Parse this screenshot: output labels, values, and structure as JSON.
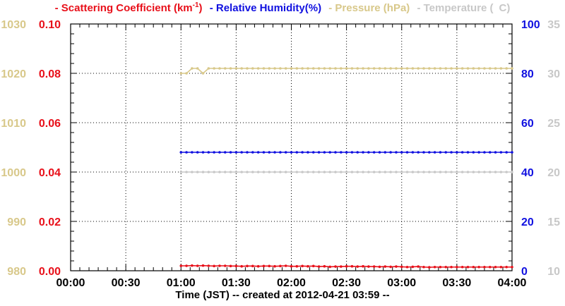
{
  "legend": [
    {
      "text": "- Scattering Coefficient (km",
      "sup": "-1",
      "tail": ")",
      "color": "#e8101a"
    },
    {
      "text": "- Relative Humidity(%)",
      "color": "#1010e0"
    },
    {
      "text": "- Pressure (hPa)",
      "color": "#d8c88a"
    },
    {
      "text": "- Temperature (",
      "tail": "C)",
      "color": "#c8c8c8"
    }
  ],
  "footer": "Time (JST)   -- created at 2012-04-21 03:59 --",
  "chart_data": {
    "type": "line",
    "x_axis": {
      "label": "Time (JST)",
      "ticks": [
        "00:00",
        "00:30",
        "01:00",
        "01:30",
        "02:00",
        "02:30",
        "03:00",
        "03:30",
        "04:00"
      ],
      "range_minutes": [
        0,
        240
      ]
    },
    "y_axes": [
      {
        "name": "pressure",
        "side": "outer-left",
        "color": "#d8c88a",
        "ticks": [
          "980",
          "990",
          "1000",
          "1010",
          "1020",
          "1030"
        ],
        "range": [
          980,
          1030
        ]
      },
      {
        "name": "scattering",
        "side": "left",
        "color": "#e8101a",
        "ticks": [
          "0.00",
          "0.02",
          "0.04",
          "0.06",
          "0.08",
          "0.10"
        ],
        "range": [
          0,
          0.1
        ]
      },
      {
        "name": "humidity",
        "side": "right",
        "color": "#1010e0",
        "ticks": [
          "0",
          "20",
          "40",
          "60",
          "80",
          "100"
        ],
        "range": [
          0,
          100
        ]
      },
      {
        "name": "temperature",
        "side": "outer-right",
        "color": "#c8c8c8",
        "ticks": [
          "10",
          "15",
          "20",
          "25",
          "30",
          "35"
        ],
        "range": [
          10,
          35
        ]
      }
    ],
    "grid": true,
    "x_minutes_start": 60,
    "x_minutes_step": 3,
    "series": [
      {
        "name": "Scattering Coefficient",
        "axis": "scattering",
        "color": "#e8101a",
        "values": [
          0.002,
          0.002,
          0.0021,
          0.002,
          0.0021,
          0.002,
          0.0019,
          0.002,
          0.002,
          0.0019,
          0.0019,
          0.0018,
          0.0019,
          0.0019,
          0.0018,
          0.0019,
          0.0019,
          0.0018,
          0.0019,
          0.002,
          0.0018,
          0.0018,
          0.0019,
          0.0018,
          0.0019,
          0.0017,
          0.0018,
          0.0016,
          0.0017,
          0.0017,
          0.0018,
          0.0018,
          0.0017,
          0.0018,
          0.0017,
          0.0017,
          0.0016,
          0.0017,
          0.0016,
          0.0017,
          0.0016,
          0.0015,
          0.0016,
          0.0017,
          0.0015,
          0.0014,
          0.0015,
          0.0015,
          0.0015,
          0.0015,
          0.0015,
          0.0015,
          0.0015,
          0.0015,
          0.0015,
          0.0015,
          0.0015,
          0.0015,
          0.0015,
          0.0015,
          0.0015
        ]
      },
      {
        "name": "Relative Humidity",
        "axis": "humidity",
        "color": "#1010e0",
        "values": [
          48,
          48,
          48,
          48,
          48,
          48,
          48,
          48,
          48,
          48,
          48,
          48,
          48,
          48,
          48,
          48,
          48,
          48,
          48,
          48,
          48,
          48,
          48,
          48,
          48,
          48,
          48,
          48,
          48,
          48,
          48,
          48,
          48,
          48,
          48,
          48,
          48,
          48,
          48,
          48,
          48,
          48,
          48,
          48,
          48,
          48,
          48,
          48,
          48,
          48,
          48,
          48,
          48,
          48,
          48,
          48,
          48,
          48,
          48,
          48,
          48
        ]
      },
      {
        "name": "Pressure",
        "axis": "pressure",
        "color": "#d8c88a",
        "values": [
          1020,
          1020,
          1021,
          1021,
          1020,
          1021,
          1021,
          1021,
          1021,
          1021,
          1021,
          1021,
          1021,
          1021,
          1021,
          1021,
          1021,
          1021,
          1021,
          1021,
          1021,
          1021,
          1021,
          1021,
          1021,
          1021,
          1021,
          1021,
          1021,
          1021,
          1021,
          1021,
          1021,
          1021,
          1021,
          1021,
          1021,
          1021,
          1021,
          1021,
          1021,
          1021,
          1021,
          1021,
          1021,
          1021,
          1021,
          1021,
          1021,
          1021,
          1021,
          1021,
          1021,
          1021,
          1021,
          1021,
          1021,
          1021,
          1021,
          1021,
          1021
        ]
      },
      {
        "name": "Temperature",
        "axis": "temperature",
        "color": "#c8c8c8",
        "values": [
          20,
          20,
          20,
          20,
          20,
          20,
          20,
          20,
          20,
          20,
          20,
          20,
          20,
          20,
          20,
          20,
          20,
          20,
          20,
          20,
          20,
          20,
          20,
          20,
          20,
          20,
          20,
          20,
          20,
          20,
          20,
          20,
          20,
          20,
          20,
          20,
          20,
          20,
          20,
          20,
          20,
          20,
          20,
          20,
          20,
          20,
          20,
          20,
          20,
          20,
          20,
          20,
          20,
          20,
          20,
          20,
          20,
          20,
          20,
          20,
          20
        ]
      }
    ]
  }
}
